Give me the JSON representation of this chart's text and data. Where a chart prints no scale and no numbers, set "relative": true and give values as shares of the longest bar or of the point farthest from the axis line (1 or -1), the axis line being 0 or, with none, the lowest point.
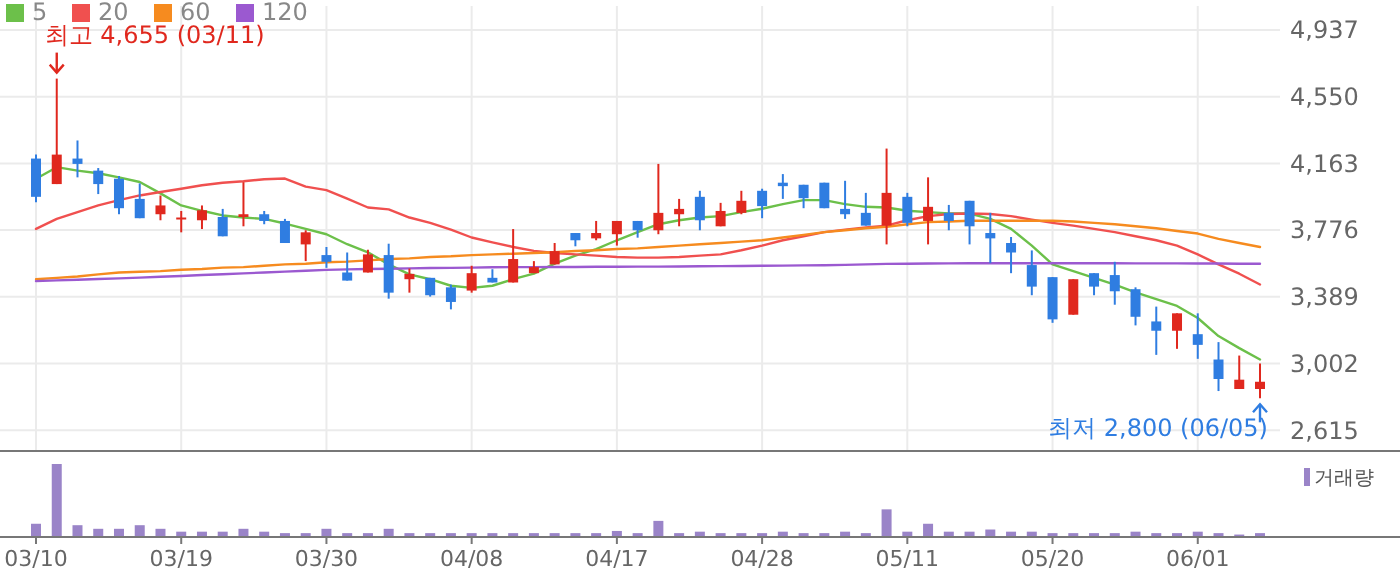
{
  "chart_data": [
    {
      "type": "candlestick",
      "categories": [
        "03/10",
        null,
        null,
        null,
        null,
        null,
        null,
        "03/19",
        null,
        null,
        null,
        null,
        null,
        null,
        "03/30",
        null,
        null,
        null,
        null,
        null,
        null,
        "04/08",
        null,
        null,
        null,
        null,
        null,
        null,
        "04/17",
        null,
        null,
        null,
        null,
        null,
        null,
        "04/28",
        null,
        null,
        null,
        null,
        null,
        null,
        "05/11",
        null,
        null,
        null,
        null,
        null,
        null,
        "05/20",
        null,
        null,
        null,
        null,
        null,
        null,
        "06/01",
        null,
        null,
        null
      ],
      "ohlc": [
        [
          4191,
          4214,
          3938,
          3969
        ],
        [
          4043,
          4655,
          4043,
          4214
        ],
        [
          4191,
          4296,
          4082,
          4160
        ],
        [
          4121,
          4136,
          3985,
          4043
        ],
        [
          4074,
          4090,
          3868,
          3903
        ],
        [
          3957,
          4047,
          3845,
          3845
        ],
        [
          3868,
          3977,
          3833,
          3919
        ],
        [
          3841,
          3887,
          3763,
          3849
        ],
        [
          3833,
          3919,
          3782,
          3891
        ],
        [
          3852,
          3899,
          3740,
          3740
        ],
        [
          3852,
          4054,
          3798,
          3868
        ],
        [
          3868,
          3887,
          3810,
          3829
        ],
        [
          3829,
          3841,
          3701,
          3701
        ],
        [
          3693,
          3775,
          3596,
          3763
        ],
        [
          3631,
          3678,
          3557,
          3592
        ],
        [
          3530,
          3646,
          3483,
          3483
        ],
        [
          3530,
          3662,
          3530,
          3635
        ],
        [
          3631,
          3697,
          3378,
          3413
        ],
        [
          3491,
          3553,
          3413,
          3522
        ],
        [
          3499,
          3499,
          3390,
          3398
        ],
        [
          3444,
          3460,
          3316,
          3359
        ],
        [
          3425,
          3569,
          3413,
          3526
        ],
        [
          3499,
          3549,
          3472,
          3472
        ],
        [
          3472,
          3782,
          3472,
          3608
        ],
        [
          3526,
          3596,
          3526,
          3561
        ],
        [
          3577,
          3701,
          3577,
          3654
        ],
        [
          3759,
          3759,
          3682,
          3717
        ],
        [
          3728,
          3829,
          3717,
          3759
        ],
        [
          3752,
          3829,
          3686,
          3829
        ],
        [
          3829,
          3829,
          3732,
          3775
        ],
        [
          3775,
          4160,
          3752,
          3876
        ],
        [
          3868,
          3957,
          3798,
          3899
        ],
        [
          3969,
          4004,
          3775,
          3833
        ],
        [
          3798,
          3934,
          3798,
          3887
        ],
        [
          3876,
          4004,
          3868,
          3946
        ],
        [
          4004,
          4016,
          3845,
          3915
        ],
        [
          4051,
          4101,
          3957,
          4031
        ],
        [
          4039,
          4039,
          3903,
          3961
        ],
        [
          4051,
          4051,
          3903,
          3903
        ],
        [
          3899,
          4062,
          3841,
          3868
        ],
        [
          3876,
          3992,
          3802,
          3802
        ],
        [
          3802,
          4249,
          3693,
          3992
        ],
        [
          3969,
          3992,
          3798,
          3818
        ],
        [
          3829,
          4082,
          3693,
          3911
        ],
        [
          3876,
          3922,
          3775,
          3829
        ],
        [
          3946,
          3946,
          3693,
          3798
        ],
        [
          3759,
          3876,
          3584,
          3728
        ],
        [
          3701,
          3736,
          3526,
          3646
        ],
        [
          3573,
          3658,
          3398,
          3448
        ],
        [
          3503,
          3503,
          3238,
          3258
        ],
        [
          3285,
          3491,
          3285,
          3491
        ],
        [
          3526,
          3526,
          3398,
          3448
        ],
        [
          3515,
          3592,
          3343,
          3421
        ],
        [
          3433,
          3444,
          3223,
          3273
        ],
        [
          3246,
          3332,
          3052,
          3192
        ],
        [
          3192,
          3293,
          3087,
          3293
        ],
        [
          3172,
          3293,
          3029,
          3110
        ],
        [
          3025,
          3126,
          2842,
          2912
        ],
        [
          2854,
          3048,
          2854,
          2908
        ],
        [
          2854,
          3002,
          2800,
          2896
        ]
      ],
      "colors": [
        "#2f7de1",
        "#e0281e",
        "#2f7de1",
        "#2f7de1",
        "#2f7de1",
        "#2f7de1",
        "#e0281e",
        "#e0281e",
        "#e0281e",
        "#2f7de1",
        "#e0281e",
        "#2f7de1",
        "#2f7de1",
        "#e0281e",
        "#2f7de1",
        "#2f7de1",
        "#e0281e",
        "#2f7de1",
        "#e0281e",
        "#2f7de1",
        "#2f7de1",
        "#e0281e",
        "#2f7de1",
        "#e0281e",
        "#e0281e",
        "#e0281e",
        "#2f7de1",
        "#e0281e",
        "#e0281e",
        "#2f7de1",
        "#e0281e",
        "#e0281e",
        "#2f7de1",
        "#e0281e",
        "#e0281e",
        "#2f7de1",
        "#2f7de1",
        "#2f7de1",
        "#2f7de1",
        "#2f7de1",
        "#2f7de1",
        "#e0281e",
        "#2f7de1",
        "#e0281e",
        "#2f7de1",
        "#2f7de1",
        "#2f7de1",
        "#2f7de1",
        "#2f7de1",
        "#2f7de1",
        "#e0281e",
        "#2f7de1",
        "#2f7de1",
        "#2f7de1",
        "#2f7de1",
        "#e0281e",
        "#2f7de1",
        "#2f7de1",
        "#e0281e",
        "#e0281e"
      ],
      "series": [
        {
          "name": "5",
          "type": "line",
          "color": "#6cc04a",
          "values": [
            4074,
            4141,
            4121,
            4106,
            4082,
            4055,
            3989,
            3919,
            3888,
            3861,
            3849,
            3841,
            3814,
            3783,
            3752,
            3694,
            3647,
            3577,
            3519,
            3491,
            3453,
            3441,
            3453,
            3491,
            3523,
            3581,
            3628,
            3666,
            3717,
            3764,
            3810,
            3833,
            3849,
            3857,
            3880,
            3900,
            3927,
            3950,
            3950,
            3927,
            3911,
            3907,
            3888,
            3880,
            3872,
            3872,
            3841,
            3783,
            3686,
            3577,
            3538,
            3499,
            3460,
            3414,
            3375,
            3336,
            3266,
            3161,
            3091,
            3025
          ]
        },
        {
          "name": "20",
          "type": "line",
          "color": "#f0504f",
          "values": [
            3783,
            3841,
            3880,
            3919,
            3950,
            3977,
            3997,
            4016,
            4036,
            4051,
            4059,
            4071,
            4075,
            4028,
            4008,
            3958,
            3907,
            3896,
            3849,
            3818,
            3779,
            3733,
            3705,
            3678,
            3655,
            3643,
            3635,
            3628,
            3620,
            3616,
            3616,
            3620,
            3628,
            3635,
            3659,
            3686,
            3717,
            3740,
            3764,
            3779,
            3791,
            3802,
            3833,
            3857,
            3869,
            3872,
            3869,
            3857,
            3837,
            3818,
            3802,
            3783,
            3764,
            3740,
            3717,
            3686,
            3635,
            3577,
            3523,
            3460
          ]
        },
        {
          "name": "60",
          "type": "line",
          "color": "#f68b1f",
          "values": [
            3491,
            3499,
            3507,
            3519,
            3530,
            3534,
            3538,
            3546,
            3550,
            3558,
            3561,
            3569,
            3577,
            3581,
            3589,
            3593,
            3600,
            3608,
            3612,
            3620,
            3624,
            3631,
            3635,
            3639,
            3643,
            3647,
            3655,
            3659,
            3666,
            3670,
            3678,
            3686,
            3694,
            3701,
            3709,
            3717,
            3733,
            3748,
            3764,
            3775,
            3787,
            3795,
            3810,
            3822,
            3826,
            3830,
            3830,
            3830,
            3830,
            3830,
            3826,
            3818,
            3810,
            3798,
            3787,
            3771,
            3756,
            3725,
            3701,
            3678
          ]
        },
        {
          "name": "120",
          "type": "line",
          "color": "#9b59d0",
          "values": [
            3480,
            3484,
            3488,
            3492,
            3496,
            3500,
            3505,
            3510,
            3515,
            3520,
            3525,
            3530,
            3535,
            3540,
            3545,
            3548,
            3550,
            3552,
            3554,
            3556,
            3557,
            3558,
            3560,
            3561,
            3561,
            3562,
            3562,
            3563,
            3563,
            3564,
            3564,
            3565,
            3566,
            3567,
            3568,
            3569,
            3570,
            3571,
            3572,
            3574,
            3577,
            3580,
            3581,
            3582,
            3583,
            3584,
            3584,
            3584,
            3584,
            3584,
            3584,
            3584,
            3584,
            3583,
            3583,
            3583,
            3582,
            3582,
            3581,
            3581
          ]
        }
      ],
      "ylim": [
        2500,
        4937
      ],
      "yticks": [
        {
          "value": 2615,
          "label": "2,615"
        },
        {
          "value": 3002,
          "label": "3,002"
        },
        {
          "value": 3389,
          "label": "3,389"
        },
        {
          "value": 3776,
          "label": "3,776"
        },
        {
          "value": 4163,
          "label": "4,163"
        },
        {
          "value": 4550,
          "label": "4,550"
        },
        {
          "value": 4937,
          "label": "4,937"
        }
      ],
      "grid": true,
      "legend": "top left",
      "annotations": [
        "최고 4,655 (03/11)",
        "최저 2,800 (06/05)"
      ]
    },
    {
      "type": "bar",
      "relative": true,
      "categories": [
        null,
        null,
        null,
        null,
        null,
        null,
        null,
        null,
        null,
        null,
        null,
        null,
        null,
        null,
        null,
        null,
        null,
        null,
        null,
        null,
        null,
        null,
        null,
        null,
        null,
        null,
        null,
        null,
        null,
        null,
        null,
        null,
        null,
        null,
        null,
        null,
        null,
        null,
        null,
        null,
        null,
        null,
        null,
        null,
        null,
        null,
        null,
        null,
        null,
        null,
        null,
        null,
        null,
        null,
        null,
        null,
        null,
        null,
        null,
        null
      ],
      "series": [
        {
          "name": "거래량",
          "color": "#9a84c8",
          "values": [
            0.17,
            1,
            0.15,
            0.1,
            0.1,
            0.15,
            0.1,
            0.06,
            0.06,
            0.06,
            0.1,
            0.06,
            0.04,
            0.04,
            0.1,
            0.04,
            0.04,
            0.1,
            0.04,
            0.04,
            0.04,
            0.04,
            0.04,
            0.04,
            0.04,
            0.04,
            0.04,
            0.04,
            0.07,
            0.04,
            0.21,
            0.04,
            0.06,
            0.04,
            0.04,
            0.04,
            0.06,
            0.04,
            0.04,
            0.06,
            0.04,
            0.37,
            0.06,
            0.17,
            0.06,
            0.06,
            0.09,
            0.06,
            0.06,
            0.04,
            0.04,
            0.04,
            0.04,
            0.06,
            0.04,
            0.04,
            0.06,
            0.04,
            0.02,
            0.04
          ]
        }
      ],
      "legend": "top right"
    }
  ]
}
